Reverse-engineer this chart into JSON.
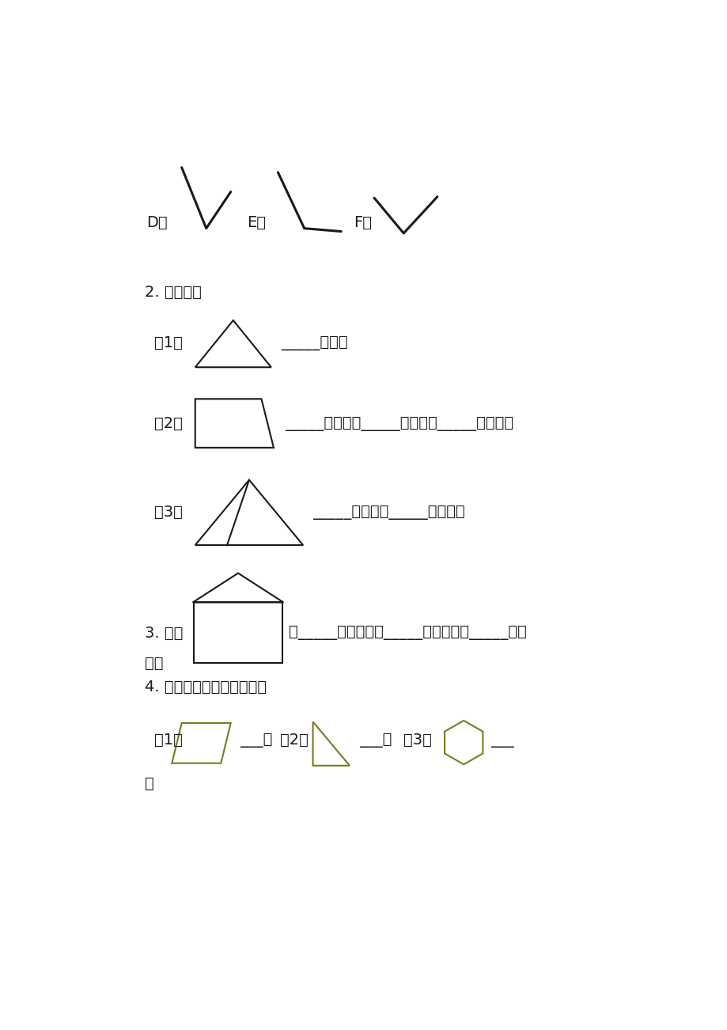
{
  "bg_color": "#ffffff",
  "shape_color": "#1a1a1a",
  "olive_color": "#7a7a20",
  "font_size": 14,
  "section2_title": "2. 数一数。",
  "section3_title": "3. 图中",
  "section3_line1": "有_____个直角，有_____个锐角，有_____个鬝",
  "section3_line2": "角。",
  "section4_title": "4. 下面的图形各有几个角。",
  "q1_label": "（1）",
  "q1_text": "_____个锐角",
  "q2_label": "（2）",
  "q2_text": "_____个直角，_____个锐角，_____个鬝角。",
  "q3_label": "（3）",
  "q3_text": "_____个锐角，_____个鬝角。",
  "s4_q1_label": "（1）",
  "s4_q1_text": "___个",
  "s4_q2_label": "（2）",
  "s4_q2_text": "___个",
  "s4_q3_label": "（3）",
  "s4_q3_text": "___",
  "s4_next_line": "个",
  "D_label": "D、",
  "E_label": "E、",
  "F_label": "F、"
}
